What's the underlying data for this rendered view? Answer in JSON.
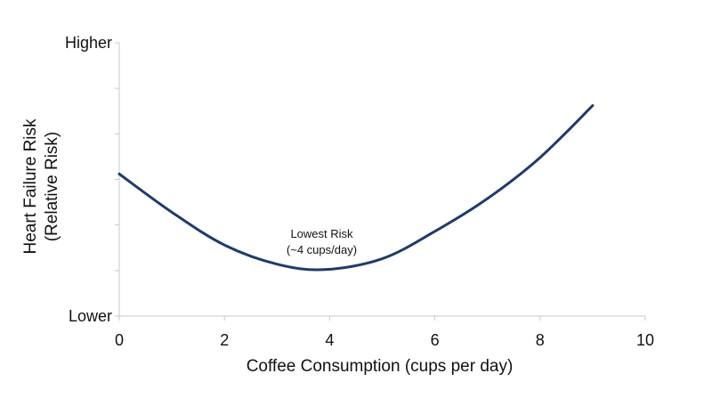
{
  "chart_data": {
    "type": "line",
    "xlabel": "Coffee Consumption (cups per day)",
    "ylabel_lines": [
      "Heart Failure Risk",
      "(Relative Risk)"
    ],
    "xlim": [
      0,
      10
    ],
    "x_ticks": [
      0,
      2,
      4,
      6,
      8,
      10
    ],
    "y_scale": "relative (qualitative)",
    "ylim": [
      0,
      1
    ],
    "y_tick_labels": [
      "Lower",
      "Higher"
    ],
    "grid": false,
    "series": [
      {
        "color": "#1f3b6b",
        "points": [
          {
            "x": 0,
            "y": 0.52
          },
          {
            "x": 1,
            "y": 0.38
          },
          {
            "x": 2,
            "y": 0.26
          },
          {
            "x": 3,
            "y": 0.19
          },
          {
            "x": 3.9,
            "y": 0.17
          },
          {
            "x": 5,
            "y": 0.21
          },
          {
            "x": 6,
            "y": 0.31
          },
          {
            "x": 7,
            "y": 0.43
          },
          {
            "x": 8,
            "y": 0.58
          },
          {
            "x": 9,
            "y": 0.77
          }
        ]
      }
    ],
    "annotation": {
      "lines": [
        "Lowest Risk",
        "(~4 cups/day)"
      ],
      "x": 3.9,
      "y": 0.17
    }
  }
}
